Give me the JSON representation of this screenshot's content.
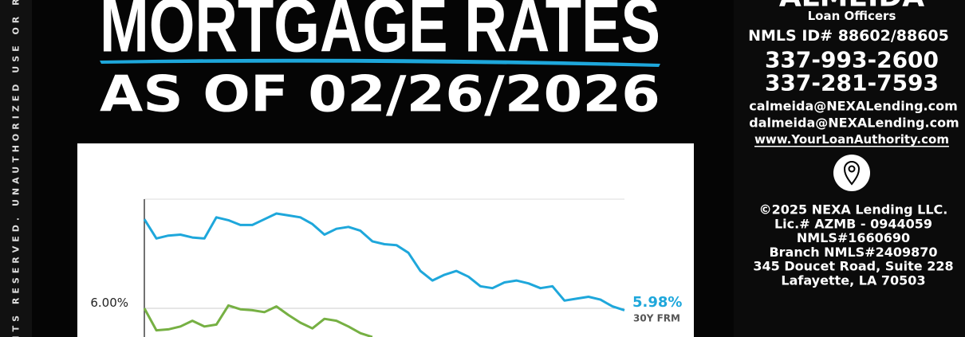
{
  "header": {
    "side_text": "HTS RESERVED. UNAUTHORIZED USE OR R",
    "title": "MORTGAGE RATES",
    "subtitle": "AS OF 02/26/2026"
  },
  "contact": {
    "name": "ALMEIDA",
    "role": "Loan Officers",
    "nmls": "NMLS ID# 88602/88605",
    "phones": [
      "337-993-2600",
      "337-281-7593"
    ],
    "emails": [
      "calmeida@NEXALending.com",
      "dalmeida@NEXALending.com"
    ],
    "website": "www.YourLoanAuthority.com"
  },
  "footer": {
    "lines": [
      "©2025 NEXA Lending LLC.",
      "Lic.# AZMB - 0944059",
      "NMLS#1660690",
      "Branch NMLS#2409870",
      "345 Doucet Road, Suite 228",
      "Lafayette, LA 70503"
    ]
  },
  "chart_data": {
    "type": "line",
    "ylim": [
      5.7,
      7.14
    ],
    "yticks": [
      {
        "value": 6,
        "label": "6.00%"
      }
    ],
    "grid": true,
    "series": [
      {
        "name": "30Y FRM",
        "color": "#1ea7db",
        "end_label": "5.98%",
        "values": [
          6.93,
          6.73,
          6.76,
          6.77,
          6.74,
          6.73,
          6.95,
          6.92,
          6.87,
          6.87,
          6.93,
          6.99,
          6.97,
          6.95,
          6.88,
          6.77,
          6.83,
          6.85,
          6.81,
          6.7,
          6.67,
          6.66,
          6.58,
          6.39,
          6.29,
          6.35,
          6.39,
          6.33,
          6.23,
          6.21,
          6.27,
          6.29,
          6.26,
          6.21,
          6.23,
          6.08,
          6.1,
          6.12,
          6.09,
          6.02,
          5.98
        ]
      },
      {
        "color": "#76b043",
        "values": [
          6.0,
          5.77,
          5.78,
          5.81,
          5.87,
          5.81,
          5.83,
          6.03,
          5.99,
          5.98,
          5.96,
          6.02,
          5.93,
          5.85,
          5.79,
          5.89,
          5.87,
          5.81,
          5.74,
          5.7,
          null,
          null,
          null,
          null,
          null,
          null,
          null,
          null,
          null,
          null,
          null,
          null,
          null,
          null,
          null,
          null,
          null,
          null,
          null,
          null,
          null
        ]
      }
    ]
  }
}
